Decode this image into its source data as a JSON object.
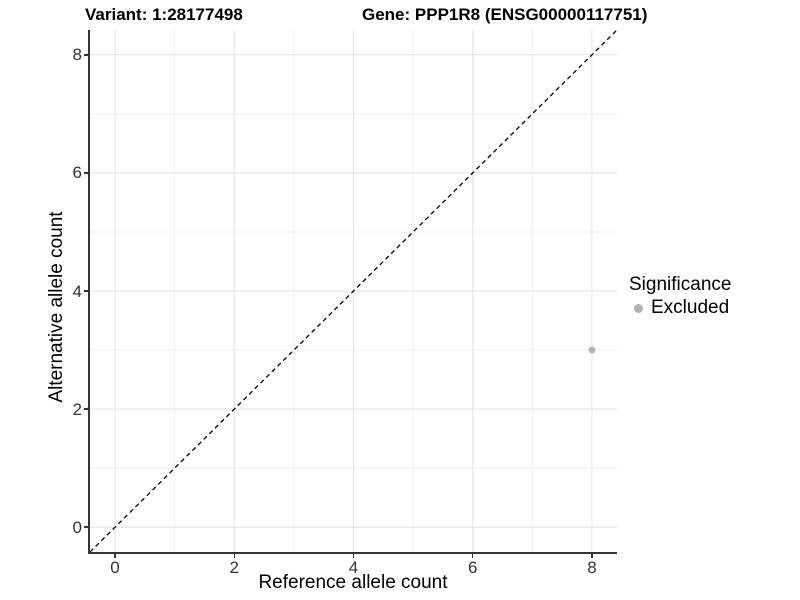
{
  "titles": {
    "variant": "Variant: 1:28177498",
    "gene": "Gene: PPP1R8 (ENSG00000117751)"
  },
  "legend": {
    "title": "Significance",
    "items": [
      {
        "label": "Excluded",
        "color": "#b3b3b3"
      }
    ]
  },
  "chart_data": {
    "type": "scatter",
    "title": "Variant: 1:28177498 | Gene: PPP1R8 (ENSG00000117751)",
    "xlabel": "Reference allele count",
    "ylabel": "Alternative allele count",
    "xlim": [
      -0.42,
      8.42
    ],
    "ylim": [
      -0.42,
      8.42
    ],
    "x_ticks": [
      0,
      2,
      4,
      6,
      8
    ],
    "y_ticks": [
      0,
      2,
      4,
      6,
      8
    ],
    "x_minor_ticks": [
      1,
      3,
      5,
      7
    ],
    "y_minor_ticks": [
      1,
      3,
      5,
      7
    ],
    "grid": "major and minor, light gray on white",
    "legend_position": "right",
    "series": [
      {
        "name": "Excluded",
        "color": "#b3b3b3",
        "points": [
          {
            "x": 8,
            "y": 3
          }
        ]
      }
    ],
    "reference_line": {
      "type": "identity y=x",
      "style": "dashed",
      "color": "#000000"
    }
  },
  "colors": {
    "background": "#ffffff",
    "axis_line": "#333333",
    "grid_major": "#e3e3e3",
    "grid_minor": "#f0f0f0",
    "tick_text": "#333333",
    "point": "#b3b3b3",
    "dashed_line": "#000000"
  }
}
